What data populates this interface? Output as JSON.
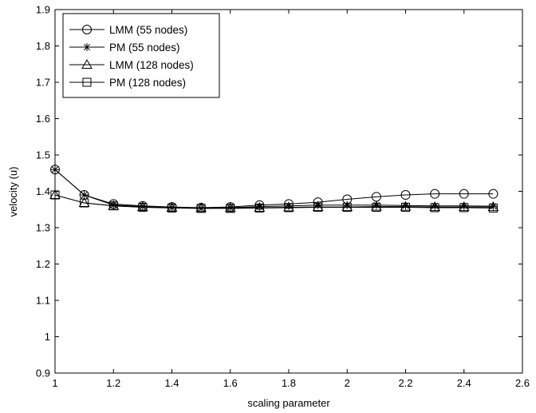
{
  "chart_data": {
    "type": "line",
    "title": "",
    "xlabel": "scaling parameter",
    "ylabel": "velocity (u)",
    "xlim": [
      1,
      2.6
    ],
    "ylim": [
      0.9,
      1.9
    ],
    "xticks": [
      1,
      1.2,
      1.4,
      1.6,
      1.8,
      2,
      2.2,
      2.4,
      2.6
    ],
    "xtick_labels": [
      "1",
      "1.2",
      "1.4",
      "1.6",
      "1.8",
      "2",
      "2.2",
      "2.4",
      "2.6"
    ],
    "yticks": [
      0.9,
      1.0,
      1.1,
      1.2,
      1.3,
      1.4,
      1.5,
      1.6,
      1.7,
      1.8,
      1.9
    ],
    "ytick_labels": [
      "0.9",
      "1",
      "1.1",
      "1.2",
      "1.3",
      "1.4",
      "1.5",
      "1.6",
      "1.7",
      "1.8",
      "1.9"
    ],
    "grid": false,
    "legend_position": "top-left",
    "x": [
      1.0,
      1.1,
      1.2,
      1.3,
      1.4,
      1.5,
      1.6,
      1.7,
      1.8,
      1.9,
      2.0,
      2.1,
      2.2,
      2.3,
      2.4,
      2.5
    ],
    "series": [
      {
        "name": "LMM (55 nodes)",
        "marker": "circle",
        "color": "#000000",
        "values": [
          1.46,
          1.39,
          1.365,
          1.36,
          1.357,
          1.355,
          1.357,
          1.362,
          1.365,
          1.37,
          1.378,
          1.385,
          1.39,
          1.393,
          1.393,
          1.393
        ]
      },
      {
        "name": "PM (55 nodes)",
        "marker": "star",
        "color": "#000000",
        "values": [
          1.46,
          1.39,
          1.362,
          1.358,
          1.355,
          1.353,
          1.355,
          1.358,
          1.36,
          1.362,
          1.362,
          1.362,
          1.361,
          1.36,
          1.36,
          1.359
        ]
      },
      {
        "name": "LMM (128 nodes)",
        "marker": "triangle",
        "color": "#000000",
        "values": [
          1.39,
          1.368,
          1.36,
          1.357,
          1.355,
          1.354,
          1.354,
          1.355,
          1.356,
          1.357,
          1.357,
          1.358,
          1.358,
          1.357,
          1.357,
          1.357
        ]
      },
      {
        "name": "PM (128 nodes)",
        "marker": "square",
        "color": "#000000",
        "values": [
          1.39,
          1.368,
          1.36,
          1.356,
          1.354,
          1.353,
          1.353,
          1.354,
          1.355,
          1.356,
          1.356,
          1.356,
          1.356,
          1.355,
          1.355,
          1.354
        ]
      }
    ]
  }
}
